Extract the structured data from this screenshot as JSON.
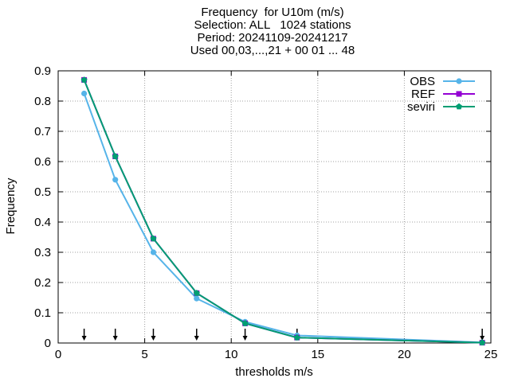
{
  "chart_data": {
    "type": "line",
    "title_lines": [
      "Frequency  for U10m (m/s)",
      "Selection: ALL   1024 stations",
      "Period: 20241109-20241217",
      "Used 00,03,...,21 + 00 01 ... 48"
    ],
    "xlabel": "thresholds m/s",
    "ylabel": "Frequency",
    "xlim": [
      0,
      25
    ],
    "ylim": [
      0,
      0.9
    ],
    "xticks": [
      "0",
      "5",
      "10",
      "15",
      "20",
      "25"
    ],
    "yticks": [
      "0",
      "0.1",
      "0.2",
      "0.3",
      "0.4",
      "0.5",
      "0.6",
      "0.7",
      "0.8",
      "0.9"
    ],
    "grid": true,
    "legend_position": "top-right",
    "x": [
      1.5,
      3.3,
      5.5,
      8.0,
      10.8,
      13.8,
      24.5
    ],
    "series": [
      {
        "name": "OBS",
        "color": "#56b4e9",
        "marker": "circle",
        "values": [
          0.825,
          0.54,
          0.3,
          0.147,
          0.07,
          0.025,
          0.002
        ]
      },
      {
        "name": "REF",
        "color": "#9400d3",
        "marker": "square",
        "values": [
          0.87,
          0.617,
          0.345,
          0.165,
          0.065,
          0.018,
          0.001
        ]
      },
      {
        "name": "seviri",
        "color": "#009e73",
        "marker": "pentagon",
        "values": [
          0.87,
          0.617,
          0.345,
          0.165,
          0.065,
          0.018,
          0.001
        ]
      }
    ],
    "threshold_arrows": [
      1.5,
      3.3,
      5.5,
      8.0,
      10.8,
      13.8,
      24.5
    ]
  }
}
